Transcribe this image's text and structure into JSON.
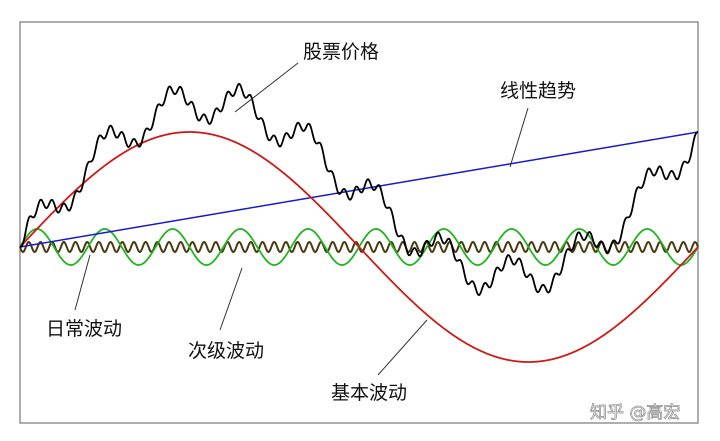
{
  "labels": {
    "stock_price": "股票价格",
    "linear_trend": "线性趋势",
    "daily_fluctuation": "日常波动",
    "secondary_wave": "次级波动",
    "primary_wave": "基本波动"
  },
  "watermark": "知乎 @高宏",
  "colors": {
    "stock_price": "#000000",
    "linear_trend": "#1a1acc",
    "primary_wave": "#cc1a1a",
    "secondary_wave": "#22b322",
    "daily_fluctuation": "#4a3a12",
    "frame": "#777777",
    "leader": "#333333"
  }
}
